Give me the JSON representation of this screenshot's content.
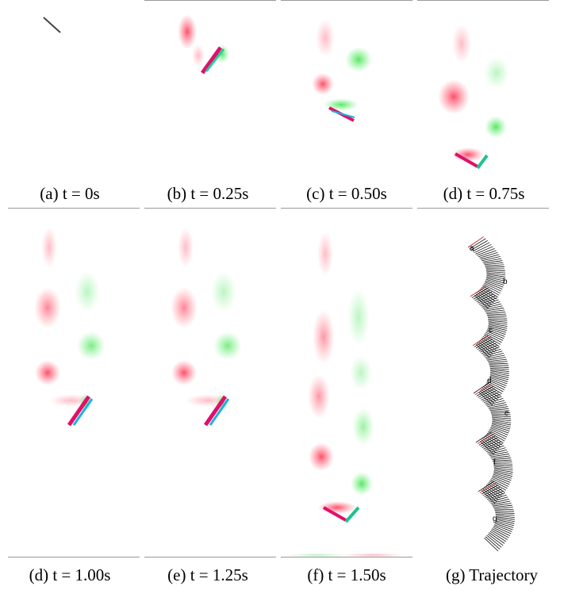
{
  "panels": [
    {
      "caption": "(a) t = 0s"
    },
    {
      "caption": "(b) t = 0.25s"
    },
    {
      "caption": "(c) t = 0.50s"
    },
    {
      "caption": "(d) t = 0.75s"
    },
    {
      "caption": "(d) t = 1.00s"
    },
    {
      "caption": "(e) t = 1.25s"
    },
    {
      "caption": "(f) t = 1.50s"
    },
    {
      "caption": "(g) Trajectory"
    }
  ],
  "trajectory": {
    "labels": [
      "a",
      "b",
      "c",
      "d",
      "e",
      "f",
      "g"
    ]
  }
}
